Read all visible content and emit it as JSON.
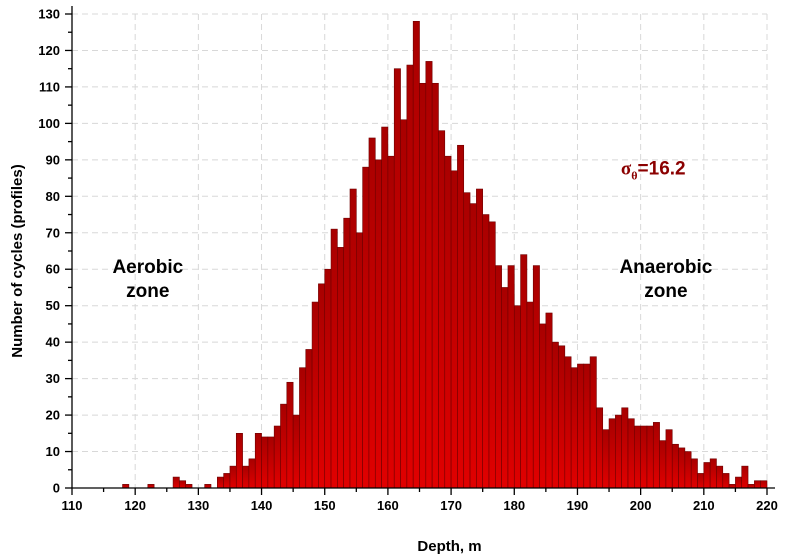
{
  "chart_data": {
    "type": "bar",
    "xlabel": "Depth, m",
    "ylabel": "Number of cycles (profiles)",
    "xlim": [
      110,
      220
    ],
    "ylim": [
      0,
      130
    ],
    "xticks": [
      110,
      120,
      130,
      140,
      150,
      160,
      170,
      180,
      190,
      200,
      210,
      220
    ],
    "yticks": [
      0,
      10,
      20,
      30,
      40,
      50,
      60,
      70,
      80,
      90,
      100,
      110,
      120,
      130
    ],
    "grid": true,
    "bar_color": "#e00000",
    "bin_width": 1,
    "annotations": [
      {
        "lines": [
          "Aerobic",
          "zone"
        ],
        "x": 122,
        "y": 59
      },
      {
        "lines": [
          "Anaerobic",
          "zone"
        ],
        "x": 204,
        "y": 59
      }
    ],
    "sigma_label": {
      "symbol": "σ",
      "subscript": "θ",
      "text": "=16.2",
      "x": 202,
      "y": 86,
      "color": "#8b0000"
    },
    "bins": [
      [
        118,
        1
      ],
      [
        122,
        1
      ],
      [
        126,
        3
      ],
      [
        127,
        2
      ],
      [
        128,
        1
      ],
      [
        131,
        1
      ],
      [
        133,
        3
      ],
      [
        134,
        4
      ],
      [
        135,
        6
      ],
      [
        136,
        15
      ],
      [
        137,
        6
      ],
      [
        138,
        8
      ],
      [
        139,
        15
      ],
      [
        140,
        14
      ],
      [
        141,
        14
      ],
      [
        142,
        17
      ],
      [
        143,
        23
      ],
      [
        144,
        29
      ],
      [
        145,
        20
      ],
      [
        146,
        33
      ],
      [
        147,
        38
      ],
      [
        148,
        51
      ],
      [
        149,
        56
      ],
      [
        150,
        60
      ],
      [
        151,
        71
      ],
      [
        152,
        66
      ],
      [
        153,
        74
      ],
      [
        154,
        82
      ],
      [
        155,
        70
      ],
      [
        156,
        88
      ],
      [
        157,
        96
      ],
      [
        158,
        90
      ],
      [
        159,
        99
      ],
      [
        160,
        91
      ],
      [
        161,
        115
      ],
      [
        162,
        101
      ],
      [
        163,
        116
      ],
      [
        164,
        128
      ],
      [
        165,
        111
      ],
      [
        166,
        117
      ],
      [
        167,
        111
      ],
      [
        168,
        98
      ],
      [
        169,
        91
      ],
      [
        170,
        87
      ],
      [
        171,
        94
      ],
      [
        172,
        81
      ],
      [
        173,
        78
      ],
      [
        174,
        82
      ],
      [
        175,
        75
      ],
      [
        176,
        73
      ],
      [
        177,
        61
      ],
      [
        178,
        55
      ],
      [
        179,
        61
      ],
      [
        180,
        50
      ],
      [
        181,
        64
      ],
      [
        182,
        51
      ],
      [
        183,
        61
      ],
      [
        184,
        45
      ],
      [
        185,
        48
      ],
      [
        186,
        40
      ],
      [
        187,
        39
      ],
      [
        188,
        36
      ],
      [
        189,
        33
      ],
      [
        190,
        34
      ],
      [
        191,
        34
      ],
      [
        192,
        36
      ],
      [
        193,
        22
      ],
      [
        194,
        16
      ],
      [
        195,
        19
      ],
      [
        196,
        20
      ],
      [
        197,
        22
      ],
      [
        198,
        19
      ],
      [
        199,
        17
      ],
      [
        200,
        17
      ],
      [
        201,
        17
      ],
      [
        202,
        18
      ],
      [
        203,
        13
      ],
      [
        204,
        16
      ],
      [
        205,
        12
      ],
      [
        206,
        11
      ],
      [
        207,
        10
      ],
      [
        208,
        8
      ],
      [
        209,
        4
      ],
      [
        210,
        7
      ],
      [
        211,
        8
      ],
      [
        212,
        6
      ],
      [
        213,
        4
      ],
      [
        214,
        1
      ],
      [
        215,
        3
      ],
      [
        216,
        6
      ],
      [
        217,
        1
      ],
      [
        218,
        2
      ],
      [
        219,
        2
      ]
    ]
  }
}
